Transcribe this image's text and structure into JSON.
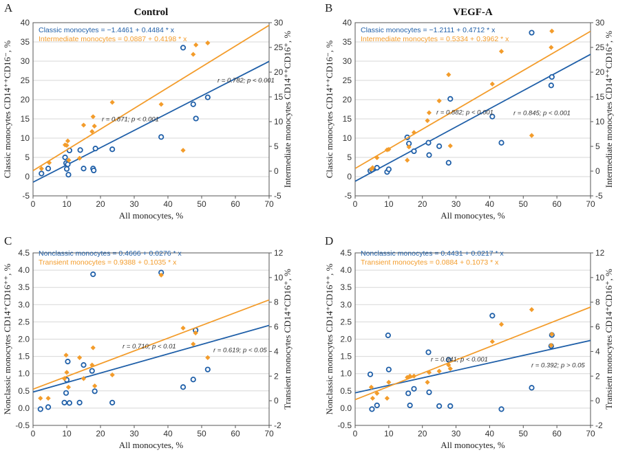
{
  "colors": {
    "blue": "#1f5fa8",
    "orange": "#f39c2b",
    "axis": "#555555",
    "grid": "#d7d7d7"
  },
  "chart_data": [
    {
      "type": "scatter",
      "panel": "A",
      "title": "Control",
      "xlabel": "All monocytes, %",
      "ylabel_left": "Classic monocytes CD14⁺⁺CD16⁻, %",
      "ylabel_right": "Intermediate monocytes CD14⁺⁺CD16⁺, %",
      "xlim": [
        0,
        70
      ],
      "ylim_left": [
        -5,
        40
      ],
      "ylim_right": [
        -5,
        30
      ],
      "xticks": [
        0,
        10,
        20,
        30,
        40,
        50,
        60,
        70
      ],
      "yticks_left": [
        -5,
        0,
        5,
        10,
        15,
        20,
        25,
        30,
        35,
        40
      ],
      "yticks_right": [
        -5,
        0,
        5,
        10,
        15,
        20,
        25,
        30
      ],
      "grid": true,
      "series": [
        {
          "name": "Classic monocytes",
          "axis": "left",
          "marker": "circle",
          "equation": "Classic monocytes = −1.4461 + 0.4484 * x",
          "intercept": -1.4461,
          "slope": 0.4484,
          "annotation": "r = 0.782; p < 0.001",
          "points": [
            [
              2.5,
              0.8
            ],
            [
              4.5,
              2.1
            ],
            [
              9.5,
              5
            ],
            [
              9.8,
              3.5
            ],
            [
              10,
              2
            ],
            [
              10.3,
              3.2
            ],
            [
              10.5,
              0.5
            ],
            [
              10.8,
              6.8
            ],
            [
              14,
              6.9
            ],
            [
              15,
              2.1
            ],
            [
              17.8,
              2.1
            ],
            [
              18,
              1.6
            ],
            [
              18.5,
              7.3
            ],
            [
              23.5,
              7.1
            ],
            [
              38,
              10.3
            ],
            [
              44.5,
              33.5
            ],
            [
              47.5,
              18.8
            ],
            [
              48.3,
              15.1
            ],
            [
              51.8,
              20.6
            ]
          ]
        },
        {
          "name": "Intermediate monocytes",
          "axis": "right",
          "marker": "diamond",
          "equation": "Intermediate monocytes = 0.0887 + 0.4198 * x",
          "intercept": 0.0887,
          "slope": 0.4198,
          "annotation": "r = 0.871; p < 0.001",
          "points": [
            [
              2.5,
              0.5
            ],
            [
              4.8,
              1.7
            ],
            [
              9.5,
              5.3
            ],
            [
              10,
              5.2
            ],
            [
              10.3,
              6.1
            ],
            [
              10.6,
              2.2
            ],
            [
              13.8,
              2.6
            ],
            [
              15,
              9.3
            ],
            [
              17.5,
              8
            ],
            [
              17.8,
              11
            ],
            [
              18.2,
              9.1
            ],
            [
              23.5,
              13.9
            ],
            [
              38,
              13.5
            ],
            [
              44.5,
              4.2
            ],
            [
              47.5,
              23.6
            ],
            [
              48.3,
              25.5
            ],
            [
              51.8,
              25.9
            ]
          ]
        }
      ]
    },
    {
      "type": "scatter",
      "panel": "B",
      "title": "VEGF-A",
      "xlabel": "All monocytes, %",
      "ylabel_left": "Classic monocytes CD14⁺⁺CD16⁻, %",
      "ylabel_right": "Intermediate monocytes CD14⁺⁺CD16⁺, %",
      "xlim": [
        0,
        70
      ],
      "ylim_left": [
        -5,
        40
      ],
      "ylim_right": [
        -5,
        30
      ],
      "xticks": [
        0,
        10,
        20,
        30,
        40,
        50,
        60,
        70
      ],
      "yticks_left": [
        -5,
        0,
        5,
        10,
        15,
        20,
        25,
        30,
        35,
        40
      ],
      "yticks_right": [
        -5,
        0,
        5,
        10,
        15,
        20,
        25,
        30
      ],
      "grid": true,
      "series": [
        {
          "name": "Classic monocytes",
          "axis": "left",
          "marker": "circle",
          "equation": "Classic monocytes = −1.2111 + 0.4712 * x",
          "intercept": -1.2111,
          "slope": 0.4712,
          "annotation": "r = 0.845; p < 0.001",
          "points": [
            [
              4.5,
              1.5
            ],
            [
              5,
              1.8
            ],
            [
              6.5,
              2.3
            ],
            [
              9.5,
              1.2
            ],
            [
              10,
              1.9
            ],
            [
              15.5,
              10.2
            ],
            [
              16,
              8.6
            ],
            [
              17.5,
              6.6
            ],
            [
              21.8,
              8.8
            ],
            [
              22,
              5.6
            ],
            [
              25,
              7.9
            ],
            [
              27.8,
              3.6
            ],
            [
              28.3,
              20.2
            ],
            [
              40.8,
              15.6
            ],
            [
              43.5,
              8.8
            ],
            [
              52.5,
              37.4
            ],
            [
              58.3,
              23.7
            ],
            [
              58.5,
              25.9
            ]
          ]
        },
        {
          "name": "Intermediate monocytes",
          "axis": "right",
          "marker": "diamond",
          "equation": "Intermediate monocytes = 0.5334 + 0.3962 * x",
          "intercept": 0.5334,
          "slope": 0.3962,
          "annotation": "r = 0.882; p < 0.001",
          "points": [
            [
              4.8,
              0.4
            ],
            [
              5.2,
              0.7
            ],
            [
              6.5,
              2.7
            ],
            [
              9.5,
              4.3
            ],
            [
              10,
              4.4
            ],
            [
              15.5,
              2.2
            ],
            [
              16,
              4.9
            ],
            [
              17.5,
              7.8
            ],
            [
              21.5,
              10.2
            ],
            [
              22,
              11.8
            ],
            [
              25,
              14.2
            ],
            [
              27.8,
              19.5
            ],
            [
              28.3,
              5.1
            ],
            [
              40.8,
              17.6
            ],
            [
              43.5,
              24.2
            ],
            [
              52.5,
              7.2
            ],
            [
              58.3,
              25
            ],
            [
              58.5,
              28.3
            ]
          ]
        }
      ]
    },
    {
      "type": "scatter",
      "panel": "C",
      "title": "",
      "xlabel": "All monocytes, %",
      "ylabel_left": "Nonclassic monocytes CD14⁺CD16⁺⁺, %",
      "ylabel_right": "Transient monocytes CD14⁺CD16⁺, %",
      "xlim": [
        0,
        70
      ],
      "ylim_left": [
        -0.5,
        4.5
      ],
      "ylim_right": [
        -2,
        12
      ],
      "xticks": [
        0,
        10,
        20,
        30,
        40,
        50,
        60,
        70
      ],
      "yticks_left": [
        -0.5,
        0.0,
        0.5,
        1.0,
        1.5,
        2.0,
        2.5,
        3.0,
        3.5,
        4.0,
        4.5
      ],
      "yticks_right": [
        -2,
        0,
        2,
        4,
        6,
        8,
        10,
        12
      ],
      "grid": true,
      "series": [
        {
          "name": "Nonclassic monocytes",
          "axis": "left",
          "marker": "circle",
          "equation": "Nonclassic monocytes = 0.4666 + 0.0276 * x",
          "intercept": 0.4666,
          "slope": 0.0276,
          "annotation": "r = 0.619; p < 0.05",
          "points": [
            [
              2.2,
              -0.03
            ],
            [
              4.5,
              0.03
            ],
            [
              9.3,
              0.16
            ],
            [
              9.8,
              0.44
            ],
            [
              10,
              0.82
            ],
            [
              10.3,
              1.35
            ],
            [
              10.8,
              0.15
            ],
            [
              13.8,
              0.16
            ],
            [
              15,
              1.25
            ],
            [
              17.5,
              1.08
            ],
            [
              17.8,
              3.88
            ],
            [
              18.3,
              0.49
            ],
            [
              23.5,
              0.16
            ],
            [
              38,
              3.93
            ],
            [
              44.5,
              0.61
            ],
            [
              47.5,
              0.83
            ],
            [
              48.2,
              2.26
            ],
            [
              51.8,
              1.12
            ]
          ]
        },
        {
          "name": "Transient monocytes",
          "axis": "right",
          "marker": "diamond",
          "equation": "Transient monocytes = 0.9388 + 0.1035 * x",
          "intercept": 0.9388,
          "slope": 0.1035,
          "annotation": "r = 0.710; p < 0.01",
          "points": [
            [
              2.2,
              0.2
            ],
            [
              4.5,
              0.2
            ],
            [
              9.3,
              1.8
            ],
            [
              9.8,
              3.7
            ],
            [
              10,
              2.3
            ],
            [
              10.5,
              1.1
            ],
            [
              13.8,
              3.5
            ],
            [
              15,
              1.8
            ],
            [
              17.5,
              2.9
            ],
            [
              17.8,
              4.3
            ],
            [
              18.3,
              1.2
            ],
            [
              23.5,
              2.1
            ],
            [
              38,
              10.2
            ],
            [
              44.5,
              5.9
            ],
            [
              47.5,
              4.6
            ],
            [
              48.2,
              5.5
            ],
            [
              51.8,
              3.5
            ]
          ]
        }
      ]
    },
    {
      "type": "scatter",
      "panel": "D",
      "title": "",
      "xlabel": "All monocytes, %",
      "ylabel_left": "Nonclassic monocytes CD14⁺CD16⁺⁺, %",
      "ylabel_right": "Transient monocytes CD14⁺CD16⁺, %",
      "xlim": [
        0,
        70
      ],
      "ylim_left": [
        -0.5,
        4.5
      ],
      "ylim_right": [
        -2,
        12
      ],
      "xticks": [
        0,
        10,
        20,
        30,
        40,
        50,
        60,
        70
      ],
      "yticks_left": [
        -0.5,
        0.0,
        0.5,
        1.0,
        1.5,
        2.0,
        2.5,
        3.0,
        3.5,
        4.0,
        4.5
      ],
      "yticks_right": [
        -2,
        0,
        2,
        4,
        6,
        8,
        10,
        12
      ],
      "grid": true,
      "series": [
        {
          "name": "Nonclassic monocytes",
          "axis": "left",
          "marker": "circle",
          "equation": "Nonclassic monocytes = 0.4431 + 0.0217 * x",
          "intercept": 0.4431,
          "slope": 0.0217,
          "annotation": "r = 0.392; p > 0.05",
          "points": [
            [
              4.5,
              0.98
            ],
            [
              5,
              -0.03
            ],
            [
              6.5,
              0.08
            ],
            [
              9.8,
              2.11
            ],
            [
              10,
              1.12
            ],
            [
              15.8,
              0.43
            ],
            [
              16.3,
              0.08
            ],
            [
              17.5,
              0.56
            ],
            [
              21.8,
              1.62
            ],
            [
              22,
              0.46
            ],
            [
              25,
              0.06
            ],
            [
              27.8,
              1.4
            ],
            [
              28.3,
              0.06
            ],
            [
              40.8,
              2.68
            ],
            [
              43.5,
              -0.03
            ],
            [
              52.5,
              0.59
            ],
            [
              58.3,
              1.8
            ],
            [
              58.5,
              2.12
            ]
          ]
        },
        {
          "name": "Transient monocytes",
          "axis": "right",
          "marker": "diamond",
          "equation": "Transient monocytes = 0.0884 + 0.1073 * x",
          "intercept": 0.0884,
          "slope": 0.1073,
          "annotation": "r = 0.941; p < 0.001",
          "points": [
            [
              4.8,
              1.1
            ],
            [
              5.2,
              0.2
            ],
            [
              6.5,
              0.6
            ],
            [
              9.5,
              0.2
            ],
            [
              10,
              1.5
            ],
            [
              15.5,
              1.9
            ],
            [
              16.3,
              2
            ],
            [
              17.5,
              2
            ],
            [
              21.5,
              1.5
            ],
            [
              22,
              2.3
            ],
            [
              25,
              2.4
            ],
            [
              27.8,
              2.9
            ],
            [
              28.3,
              2.6
            ],
            [
              40.8,
              4.8
            ],
            [
              43.5,
              6.2
            ],
            [
              52.5,
              7.4
            ],
            [
              58.3,
              4.5
            ],
            [
              58.5,
              5.4
            ]
          ]
        }
      ]
    }
  ]
}
